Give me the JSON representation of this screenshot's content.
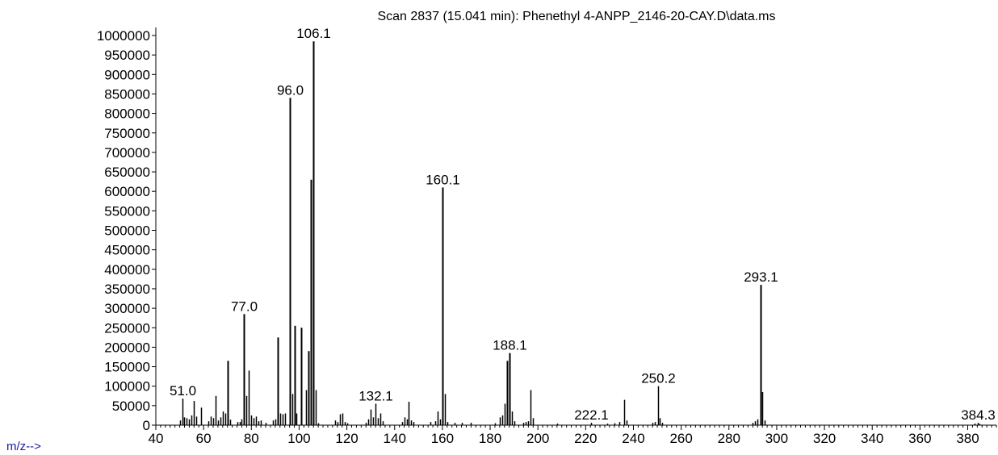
{
  "chart_data": {
    "type": "bar",
    "title": "Scan 2837 (15.041 min): Phenethyl 4-ANPP_2146-20-CAY.D\\data.ms",
    "xlabel": "m/z-->",
    "ylabel": "",
    "xlim": [
      40,
      392
    ],
    "ylim": [
      0,
      1000000
    ],
    "x_ticks": [
      40,
      60,
      80,
      100,
      120,
      140,
      160,
      180,
      200,
      220,
      240,
      260,
      280,
      300,
      320,
      340,
      360,
      380
    ],
    "y_ticks": [
      0,
      50000,
      100000,
      150000,
      200000,
      250000,
      300000,
      350000,
      400000,
      450000,
      500000,
      550000,
      600000,
      650000,
      700000,
      750000,
      800000,
      850000,
      900000,
      950000,
      1000000
    ],
    "grid": false,
    "peaks": [
      {
        "x": 50,
        "y": 12000
      },
      {
        "x": 51.0,
        "y": 68000,
        "label": "51.0"
      },
      {
        "x": 52,
        "y": 20000
      },
      {
        "x": 53,
        "y": 18000
      },
      {
        "x": 54,
        "y": 15000
      },
      {
        "x": 55,
        "y": 25000
      },
      {
        "x": 56,
        "y": 62000
      },
      {
        "x": 57,
        "y": 22000
      },
      {
        "x": 59,
        "y": 45000
      },
      {
        "x": 62,
        "y": 10000
      },
      {
        "x": 63,
        "y": 22000
      },
      {
        "x": 64,
        "y": 18000
      },
      {
        "x": 65,
        "y": 75000
      },
      {
        "x": 66,
        "y": 12000
      },
      {
        "x": 67,
        "y": 20000
      },
      {
        "x": 68,
        "y": 35000
      },
      {
        "x": 69,
        "y": 30000
      },
      {
        "x": 70,
        "y": 165000
      },
      {
        "x": 71,
        "y": 14000
      },
      {
        "x": 74,
        "y": 8000
      },
      {
        "x": 75,
        "y": 8000
      },
      {
        "x": 76,
        "y": 15000
      },
      {
        "x": 77.0,
        "y": 285000,
        "label": "77.0"
      },
      {
        "x": 78,
        "y": 75000
      },
      {
        "x": 79,
        "y": 140000
      },
      {
        "x": 80,
        "y": 25000
      },
      {
        "x": 81,
        "y": 18000
      },
      {
        "x": 82,
        "y": 22000
      },
      {
        "x": 83,
        "y": 10000
      },
      {
        "x": 84,
        "y": 12000
      },
      {
        "x": 86,
        "y": 6000
      },
      {
        "x": 89,
        "y": 12000
      },
      {
        "x": 90,
        "y": 15000
      },
      {
        "x": 91,
        "y": 225000
      },
      {
        "x": 92,
        "y": 30000
      },
      {
        "x": 93,
        "y": 28000
      },
      {
        "x": 94,
        "y": 30000
      },
      {
        "x": 96.0,
        "y": 840000,
        "label": "96.0"
      },
      {
        "x": 97,
        "y": 80000
      },
      {
        "x": 98,
        "y": 255000
      },
      {
        "x": 99,
        "y": 30000
      },
      {
        "x": 101,
        "y": 250000
      },
      {
        "x": 103,
        "y": 90000
      },
      {
        "x": 104,
        "y": 190000
      },
      {
        "x": 105,
        "y": 630000
      },
      {
        "x": 106.1,
        "y": 985000,
        "label": "106.1"
      },
      {
        "x": 107,
        "y": 90000
      },
      {
        "x": 108,
        "y": 5000
      },
      {
        "x": 115,
        "y": 12000
      },
      {
        "x": 116,
        "y": 8000
      },
      {
        "x": 117,
        "y": 28000
      },
      {
        "x": 118,
        "y": 30000
      },
      {
        "x": 119,
        "y": 8000
      },
      {
        "x": 120,
        "y": 5000
      },
      {
        "x": 128,
        "y": 6000
      },
      {
        "x": 129,
        "y": 15000
      },
      {
        "x": 130,
        "y": 40000
      },
      {
        "x": 131,
        "y": 20000
      },
      {
        "x": 132.1,
        "y": 55000,
        "label": "132.1"
      },
      {
        "x": 133,
        "y": 18000
      },
      {
        "x": 134,
        "y": 30000
      },
      {
        "x": 135,
        "y": 10000
      },
      {
        "x": 143,
        "y": 8000
      },
      {
        "x": 144,
        "y": 20000
      },
      {
        "x": 145,
        "y": 15000
      },
      {
        "x": 146,
        "y": 60000
      },
      {
        "x": 147,
        "y": 12000
      },
      {
        "x": 148,
        "y": 8000
      },
      {
        "x": 155,
        "y": 8000
      },
      {
        "x": 157,
        "y": 10000
      },
      {
        "x": 158,
        "y": 35000
      },
      {
        "x": 159,
        "y": 15000
      },
      {
        "x": 160.1,
        "y": 610000,
        "label": "160.1"
      },
      {
        "x": 161,
        "y": 80000
      },
      {
        "x": 162,
        "y": 8000
      },
      {
        "x": 165,
        "y": 6000
      },
      {
        "x": 168,
        "y": 6000
      },
      {
        "x": 172,
        "y": 6000
      },
      {
        "x": 182,
        "y": 5000
      },
      {
        "x": 184,
        "y": 20000
      },
      {
        "x": 185,
        "y": 25000
      },
      {
        "x": 186,
        "y": 55000
      },
      {
        "x": 187,
        "y": 165000
      },
      {
        "x": 188.1,
        "y": 185000,
        "label": "188.1"
      },
      {
        "x": 189,
        "y": 35000
      },
      {
        "x": 190,
        "y": 10000
      },
      {
        "x": 194,
        "y": 6000
      },
      {
        "x": 195,
        "y": 8000
      },
      {
        "x": 196,
        "y": 10000
      },
      {
        "x": 197,
        "y": 90000
      },
      {
        "x": 198,
        "y": 18000
      },
      {
        "x": 208,
        "y": 4000
      },
      {
        "x": 222.1,
        "y": 6000,
        "label": "222.1"
      },
      {
        "x": 229,
        "y": 4000
      },
      {
        "x": 232,
        "y": 5000
      },
      {
        "x": 234,
        "y": 8000
      },
      {
        "x": 236,
        "y": 65000
      },
      {
        "x": 237,
        "y": 12000
      },
      {
        "x": 248,
        "y": 6000
      },
      {
        "x": 249,
        "y": 8000
      },
      {
        "x": 250.2,
        "y": 100000,
        "label": "250.2"
      },
      {
        "x": 251,
        "y": 18000
      },
      {
        "x": 252,
        "y": 6000
      },
      {
        "x": 290,
        "y": 6000
      },
      {
        "x": 291,
        "y": 10000
      },
      {
        "x": 292,
        "y": 15000
      },
      {
        "x": 293.1,
        "y": 360000,
        "label": "293.1"
      },
      {
        "x": 294,
        "y": 85000
      },
      {
        "x": 295,
        "y": 12000
      },
      {
        "x": 383,
        "y": 4000
      },
      {
        "x": 384.3,
        "y": 6000,
        "label": "384.3"
      },
      {
        "x": 385,
        "y": 3000
      }
    ]
  }
}
